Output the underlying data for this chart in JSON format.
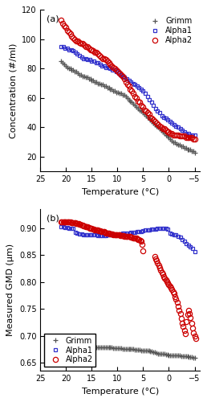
{
  "panel_a": {
    "title": "(a)",
    "xlabel": "Temperature (°C)",
    "ylabel": "Concentration (#/ml)",
    "xlim": [
      25,
      -6
    ],
    "ylim": [
      10,
      120
    ],
    "yticks": [
      20,
      40,
      60,
      80,
      100,
      120
    ],
    "xticks": [
      25,
      20,
      15,
      10,
      5,
      0,
      -5
    ],
    "grimm": {
      "color": "#555555",
      "marker": "+",
      "x": [
        21.0,
        20.7,
        20.4,
        20.1,
        19.8,
        19.5,
        19.2,
        18.9,
        18.6,
        18.3,
        18.0,
        17.7,
        17.4,
        17.1,
        16.8,
        16.5,
        16.2,
        15.9,
        15.6,
        15.3,
        15.0,
        14.7,
        14.4,
        14.1,
        13.8,
        13.5,
        13.2,
        12.9,
        12.6,
        12.3,
        12.0,
        11.7,
        11.4,
        11.1,
        10.8,
        10.5,
        10.2,
        9.9,
        9.6,
        9.3,
        9.0,
        8.7,
        8.4,
        8.1,
        7.8,
        7.5,
        7.2,
        6.9,
        6.6,
        6.3,
        6.0,
        5.7,
        5.4,
        5.1,
        4.8,
        4.5,
        4.2,
        3.9,
        3.6,
        3.3,
        3.0,
        2.7,
        2.4,
        2.1,
        1.8,
        1.5,
        1.2,
        0.9,
        0.6,
        0.3,
        0.0,
        -0.3,
        -0.6,
        -0.9,
        -1.2,
        -1.5,
        -1.8,
        -2.1,
        -2.4,
        -2.7,
        -3.0,
        -3.3,
        -3.6,
        -3.9,
        -4.2,
        -4.5,
        -4.8,
        -5.1
      ],
      "y": [
        85,
        84,
        83,
        82,
        81,
        80,
        80,
        79,
        79,
        78,
        78,
        77,
        76,
        76,
        75,
        75,
        74,
        74,
        73,
        73,
        72,
        72,
        71,
        71,
        70,
        70,
        69,
        69,
        68,
        68,
        67,
        67,
        66,
        66,
        65,
        65,
        64,
        64,
        63,
        63,
        62,
        62,
        61,
        60,
        59,
        58,
        57,
        56,
        55,
        54,
        53,
        52,
        51,
        50,
        49,
        48,
        47,
        46,
        45,
        44,
        43,
        42,
        41,
        40,
        39,
        38,
        37,
        36,
        35,
        34,
        33,
        32,
        31,
        30,
        30,
        29,
        28,
        28,
        27,
        27,
        26,
        26,
        25,
        25,
        25,
        24,
        24,
        23
      ]
    },
    "alpha1": {
      "color": "#3333cc",
      "marker": "s",
      "x": [
        21.0,
        20.6,
        20.2,
        19.8,
        19.4,
        19.0,
        18.6,
        18.2,
        17.8,
        17.4,
        17.0,
        16.6,
        16.2,
        15.8,
        15.4,
        15.0,
        14.6,
        14.2,
        13.8,
        13.4,
        13.0,
        12.6,
        12.2,
        11.8,
        11.4,
        11.0,
        10.6,
        10.2,
        9.8,
        9.4,
        9.0,
        8.6,
        8.2,
        7.8,
        7.4,
        7.0,
        6.6,
        6.2,
        5.8,
        5.4,
        5.0,
        4.6,
        4.2,
        3.8,
        3.4,
        3.0,
        2.6,
        2.2,
        1.8,
        1.4,
        1.0,
        0.6,
        0.2,
        -0.2,
        -0.6,
        -1.0,
        -1.4,
        -1.8,
        -2.2,
        -2.6,
        -3.0,
        -3.4,
        -3.8,
        -4.2,
        -4.6,
        -5.0
      ],
      "y": [
        95,
        95,
        94,
        94,
        93,
        93,
        92,
        91,
        90,
        89,
        88,
        87,
        87,
        86,
        86,
        85,
        85,
        84,
        84,
        83,
        82,
        82,
        81,
        81,
        80,
        79,
        79,
        78,
        77,
        76,
        75,
        74,
        73,
        72,
        71,
        70,
        69,
        68,
        67,
        66,
        65,
        63,
        61,
        59,
        57,
        55,
        53,
        51,
        50,
        48,
        47,
        46,
        45,
        44,
        43,
        42,
        41,
        40,
        39,
        38,
        37,
        36,
        36,
        35,
        35,
        35
      ]
    },
    "alpha2": {
      "color": "#cc0000",
      "marker": "o",
      "x": [
        21.0,
        20.7,
        20.4,
        20.1,
        19.8,
        19.5,
        19.2,
        18.9,
        18.6,
        18.3,
        18.0,
        17.7,
        17.4,
        17.1,
        16.8,
        16.5,
        16.2,
        15.9,
        15.6,
        15.3,
        15.0,
        14.7,
        14.4,
        14.1,
        13.8,
        13.5,
        13.2,
        12.9,
        12.6,
        12.3,
        12.0,
        11.7,
        11.4,
        11.1,
        10.8,
        10.5,
        10.2,
        9.9,
        9.6,
        9.3,
        9.0,
        8.7,
        8.4,
        8.1,
        7.8,
        7.5,
        7.2,
        6.9,
        6.6,
        6.3,
        6.0,
        5.7,
        5.4,
        5.1,
        4.8,
        4.5,
        4.2,
        3.9,
        3.6,
        3.3,
        3.0,
        2.7,
        2.4,
        2.1,
        1.8,
        1.5,
        1.2,
        0.9,
        0.6,
        0.3,
        0.0,
        -0.3,
        -0.6,
        -0.9,
        -1.2,
        -1.5,
        -1.8,
        -2.1,
        -2.4,
        -2.7,
        -3.0,
        -3.3,
        -3.6,
        -3.9,
        -4.2,
        -4.5,
        -4.8,
        -5.1
      ],
      "y": [
        113,
        111,
        109,
        108,
        106,
        105,
        104,
        102,
        101,
        100,
        99,
        99,
        98,
        97,
        97,
        96,
        95,
        95,
        94,
        93,
        93,
        92,
        91,
        91,
        90,
        89,
        88,
        87,
        87,
        86,
        85,
        84,
        83,
        82,
        81,
        80,
        79,
        78,
        77,
        76,
        75,
        73,
        71,
        69,
        68,
        66,
        65,
        63,
        61,
        60,
        58,
        57,
        55,
        54,
        52,
        51,
        50,
        49,
        47,
        46,
        45,
        44,
        43,
        42,
        41,
        40,
        39,
        39,
        38,
        37,
        37,
        36,
        36,
        35,
        35,
        35,
        35,
        34,
        34,
        34,
        34,
        33,
        33,
        33,
        33,
        33,
        32,
        32
      ]
    }
  },
  "panel_b": {
    "title": "(b)",
    "xlabel": "Temperature (°C)",
    "ylabel": "Measured GMD (μm)",
    "xlim": [
      25,
      -6
    ],
    "ylim": [
      0.635,
      0.935
    ],
    "yticks": [
      0.65,
      0.7,
      0.75,
      0.8,
      0.85,
      0.9
    ],
    "xticks": [
      25,
      20,
      15,
      10,
      5,
      0,
      -5
    ],
    "grimm": {
      "color": "#555555",
      "marker": "+",
      "x": [
        21.0,
        20.7,
        20.4,
        20.1,
        19.8,
        19.5,
        19.2,
        18.9,
        18.6,
        18.3,
        18.0,
        17.7,
        17.4,
        17.1,
        16.8,
        16.5,
        16.2,
        15.9,
        15.6,
        15.3,
        15.0,
        14.7,
        14.4,
        14.1,
        13.8,
        13.5,
        13.2,
        12.9,
        12.6,
        12.3,
        12.0,
        11.7,
        11.4,
        11.1,
        10.8,
        10.5,
        10.2,
        9.9,
        9.6,
        9.3,
        9.0,
        8.7,
        8.4,
        8.1,
        7.8,
        7.5,
        7.2,
        6.9,
        6.6,
        6.3,
        6.0,
        5.7,
        5.4,
        5.1,
        4.8,
        4.5,
        4.2,
        3.9,
        3.6,
        3.3,
        3.0,
        2.7,
        2.4,
        2.1,
        1.8,
        1.5,
        1.2,
        0.9,
        0.6,
        0.3,
        0.0,
        -0.3,
        -0.6,
        -0.9,
        -1.2,
        -1.5,
        -1.8,
        -2.1,
        -2.4,
        -2.7,
        -3.0,
        -3.3,
        -3.6,
        -3.9,
        -4.2,
        -4.5,
        -4.8,
        -5.1
      ],
      "y": [
        0.682,
        0.682,
        0.682,
        0.681,
        0.681,
        0.681,
        0.681,
        0.681,
        0.681,
        0.681,
        0.681,
        0.681,
        0.681,
        0.681,
        0.68,
        0.68,
        0.68,
        0.68,
        0.68,
        0.68,
        0.68,
        0.679,
        0.679,
        0.679,
        0.679,
        0.679,
        0.679,
        0.679,
        0.678,
        0.678,
        0.678,
        0.678,
        0.678,
        0.678,
        0.677,
        0.677,
        0.677,
        0.677,
        0.677,
        0.677,
        0.676,
        0.676,
        0.676,
        0.676,
        0.675,
        0.675,
        0.675,
        0.675,
        0.674,
        0.674,
        0.674,
        0.674,
        0.673,
        0.673,
        0.673,
        0.673,
        0.672,
        0.672,
        0.671,
        0.671,
        0.67,
        0.669,
        0.668,
        0.667,
        0.667,
        0.666,
        0.666,
        0.666,
        0.665,
        0.665,
        0.664,
        0.664,
        0.664,
        0.663,
        0.663,
        0.663,
        0.663,
        0.663,
        0.662,
        0.662,
        0.662,
        0.662,
        0.662,
        0.661,
        0.661,
        0.661,
        0.66,
        0.66
      ]
    },
    "alpha1": {
      "color": "#3333cc",
      "marker": "s",
      "x": [
        21.0,
        20.6,
        20.2,
        19.8,
        19.4,
        19.0,
        18.6,
        18.2,
        17.8,
        17.4,
        17.0,
        16.6,
        16.2,
        15.8,
        15.4,
        15.0,
        14.6,
        14.2,
        13.8,
        13.4,
        13.0,
        12.6,
        12.2,
        11.8,
        11.4,
        11.0,
        10.6,
        10.2,
        9.8,
        9.4,
        9.0,
        8.6,
        8.2,
        7.8,
        7.4,
        7.0,
        6.6,
        6.2,
        5.8,
        5.4,
        5.0,
        4.6,
        4.2,
        3.8,
        3.4,
        3.0,
        2.6,
        2.2,
        1.8,
        1.4,
        1.0,
        0.6,
        0.2,
        -0.2,
        -0.6,
        -1.0,
        -1.4,
        -1.8,
        -2.2,
        -2.6,
        -3.0,
        -3.4,
        -3.8,
        -4.2,
        -4.6,
        -5.0
      ],
      "y": [
        0.903,
        0.902,
        0.901,
        0.901,
        0.9,
        0.9,
        0.899,
        0.892,
        0.89,
        0.889,
        0.889,
        0.888,
        0.888,
        0.888,
        0.887,
        0.887,
        0.887,
        0.887,
        0.886,
        0.886,
        0.886,
        0.886,
        0.886,
        0.887,
        0.887,
        0.887,
        0.887,
        0.888,
        0.888,
        0.889,
        0.89,
        0.89,
        0.891,
        0.891,
        0.892,
        0.892,
        0.892,
        0.893,
        0.893,
        0.894,
        0.895,
        0.896,
        0.896,
        0.897,
        0.898,
        0.898,
        0.898,
        0.899,
        0.899,
        0.9,
        0.9,
        0.899,
        0.898,
        0.89,
        0.889,
        0.888,
        0.887,
        0.885,
        0.883,
        0.879,
        0.876,
        0.872,
        0.869,
        0.866,
        0.862,
        0.857
      ]
    },
    "alpha2_high": {
      "color": "#cc0000",
      "marker": "o",
      "x": [
        21.0,
        20.8,
        20.6,
        20.4,
        20.2,
        20.0,
        19.8,
        19.6,
        19.4,
        19.2,
        19.0,
        18.8,
        18.6,
        18.4,
        18.2,
        18.0,
        17.8,
        17.6,
        17.4,
        17.2,
        17.0,
        16.8,
        16.6,
        16.4,
        16.2,
        16.0,
        15.8,
        15.6,
        15.4,
        15.2,
        15.0,
        14.8,
        14.6,
        14.4,
        14.2,
        14.0,
        13.8,
        13.6,
        13.4,
        13.2,
        13.0,
        12.8,
        12.6,
        12.4,
        12.2,
        12.0,
        11.8,
        11.6,
        11.4,
        11.2,
        11.0,
        10.8,
        10.6,
        10.4,
        10.2,
        10.0,
        9.8,
        9.6,
        9.4,
        9.2,
        9.0,
        8.8,
        8.6,
        8.4,
        8.2,
        8.0,
        7.8,
        7.6,
        7.4,
        7.2,
        7.0,
        6.8,
        6.6,
        6.4,
        6.2,
        6.0,
        5.8,
        5.6,
        5.4,
        5.2,
        5.0
      ],
      "y": [
        0.912,
        0.912,
        0.912,
        0.912,
        0.912,
        0.911,
        0.911,
        0.911,
        0.911,
        0.911,
        0.91,
        0.91,
        0.91,
        0.91,
        0.91,
        0.909,
        0.909,
        0.908,
        0.907,
        0.907,
        0.906,
        0.905,
        0.904,
        0.904,
        0.903,
        0.902,
        0.902,
        0.901,
        0.9,
        0.9,
        0.899,
        0.898,
        0.898,
        0.897,
        0.897,
        0.896,
        0.896,
        0.895,
        0.895,
        0.894,
        0.894,
        0.893,
        0.893,
        0.892,
        0.891,
        0.891,
        0.89,
        0.89,
        0.889,
        0.889,
        0.889,
        0.888,
        0.888,
        0.888,
        0.887,
        0.887,
        0.887,
        0.887,
        0.886,
        0.886,
        0.886,
        0.886,
        0.885,
        0.885,
        0.885,
        0.885,
        0.884,
        0.884,
        0.883,
        0.883,
        0.882,
        0.882,
        0.881,
        0.881,
        0.88,
        0.879,
        0.879,
        0.878,
        0.876,
        0.87,
        0.858
      ]
    },
    "alpha2_low": {
      "color": "#cc0000",
      "marker": "o",
      "x": [
        2.8,
        2.6,
        2.4,
        2.2,
        2.0,
        1.8,
        1.6,
        1.4,
        1.2,
        1.0,
        0.8,
        0.6,
        0.4,
        0.2,
        0.0,
        -0.2,
        -0.4,
        -0.6,
        -0.8,
        -1.0,
        -1.2,
        -1.4,
        -1.6,
        -1.8,
        -2.0,
        -2.2,
        -2.4,
        -2.6,
        -2.8,
        -3.0,
        -3.2,
        -3.4,
        -3.6,
        -3.8,
        -4.0,
        -4.2,
        -4.4,
        -4.6,
        -4.8,
        -5.0,
        -5.2
      ],
      "y": [
        0.847,
        0.843,
        0.84,
        0.836,
        0.831,
        0.826,
        0.822,
        0.818,
        0.814,
        0.81,
        0.807,
        0.804,
        0.801,
        0.798,
        0.795,
        0.792,
        0.789,
        0.786,
        0.782,
        0.778,
        0.773,
        0.768,
        0.762,
        0.755,
        0.748,
        0.741,
        0.733,
        0.724,
        0.717,
        0.71,
        0.704,
        0.727,
        0.74,
        0.748,
        0.742,
        0.734,
        0.724,
        0.714,
        0.706,
        0.7,
        0.695
      ]
    }
  },
  "legend_grimm": "Grimm",
  "legend_alpha1": "Alpha1",
  "legend_alpha2": "Alpha2",
  "markersize": 3.5,
  "markeredgewidth": 0.9,
  "fontsize": 8,
  "tick_fontsize": 7,
  "background_color": "#ffffff"
}
